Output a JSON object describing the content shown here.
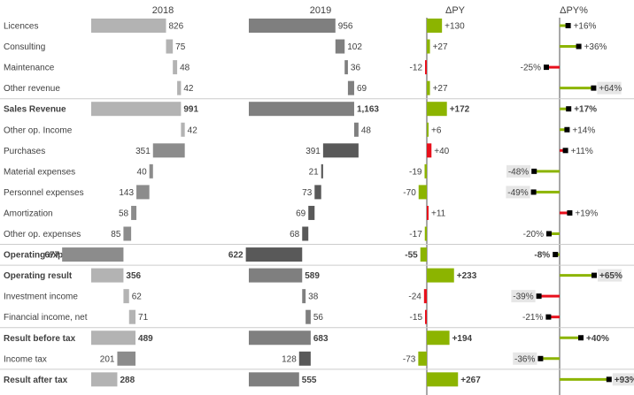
{
  "chart_data": {
    "type": "bar",
    "title": "",
    "columns": {
      "py": "2018",
      "ac": "2019",
      "delta": "ΔPY",
      "delta_pct": "ΔPY%"
    },
    "colors": {
      "py": "#b3b3b3",
      "py_cost": "#8c8c8c",
      "ac": "#7f7f7f",
      "ac_cost": "#595959",
      "positive": "#8cb400",
      "negative": "#e8101c",
      "axis": "#8c8c8c",
      "text": "#404040",
      "marker": "#000000"
    },
    "rows": [
      {
        "label": "Licences",
        "bold": false,
        "kind": "up",
        "py": 826,
        "py_label": "826",
        "ac": 956,
        "ac_label": "956",
        "delta": 130,
        "delta_label": "+130",
        "delta_good": true,
        "pct": 16,
        "pct_label": "+16%",
        "pct_good": true
      },
      {
        "label": "Consulting",
        "bold": false,
        "kind": "up",
        "py": 75,
        "py_label": "75",
        "ac": 102,
        "ac_label": "102",
        "delta": 27,
        "delta_label": "+27",
        "delta_good": true,
        "pct": 36,
        "pct_label": "+36%",
        "pct_good": true
      },
      {
        "label": "Maintenance",
        "bold": false,
        "kind": "up",
        "py": 48,
        "py_label": "48",
        "ac": 36,
        "ac_label": "36",
        "delta": -12,
        "delta_label": "-12",
        "delta_good": false,
        "pct": -25,
        "pct_label": "-25%",
        "pct_good": false
      },
      {
        "label": "Other revenue",
        "bold": false,
        "kind": "up",
        "py": 42,
        "py_label": "42",
        "ac": 69,
        "ac_label": "69",
        "delta": 27,
        "delta_label": "+27",
        "delta_good": true,
        "pct": 64,
        "pct_label": "+64%",
        "pct_good": true,
        "pct_shaded": true
      },
      {
        "label": "Sales Revenue",
        "bold": true,
        "kind": "total",
        "py": 991,
        "py_label": "991",
        "ac": 1163,
        "ac_label": "1,163",
        "delta": 172,
        "delta_label": "+172",
        "delta_good": true,
        "pct": 17,
        "pct_label": "+17%",
        "pct_good": true,
        "separator": true
      },
      {
        "label": "Other op. Income",
        "bold": false,
        "kind": "up",
        "py": 42,
        "py_label": "42",
        "ac": 48,
        "ac_label": "48",
        "delta": 6,
        "delta_label": "+6",
        "delta_good": true,
        "pct": 14,
        "pct_label": "+14%",
        "pct_good": true
      },
      {
        "label": "Purchases",
        "bold": false,
        "kind": "down",
        "py": 351,
        "py_label": "351",
        "ac": 391,
        "ac_label": "391",
        "delta": 40,
        "delta_label": "+40",
        "delta_good": false,
        "pct": 11,
        "pct_label": "+11%",
        "pct_good": false
      },
      {
        "label": "Material expenses",
        "bold": false,
        "kind": "down",
        "py": 40,
        "py_label": "40",
        "ac": 21,
        "ac_label": "21",
        "delta": -19,
        "delta_label": "-19",
        "delta_good": true,
        "pct": -48,
        "pct_label": "-48%",
        "pct_good": true,
        "pct_shaded": true
      },
      {
        "label": "Personnel expenses",
        "bold": false,
        "kind": "down",
        "py": 143,
        "py_label": "143",
        "ac": 73,
        "ac_label": "73",
        "delta": -70,
        "delta_label": "-70",
        "delta_good": true,
        "pct": -49,
        "pct_label": "-49%",
        "pct_good": true,
        "pct_shaded": true
      },
      {
        "label": "Amortization",
        "bold": false,
        "kind": "down",
        "py": 58,
        "py_label": "58",
        "ac": 69,
        "ac_label": "69",
        "delta": 11,
        "delta_label": "+11",
        "delta_good": false,
        "pct": 19,
        "pct_label": "+19%",
        "pct_good": false
      },
      {
        "label": "Other op. expenses",
        "bold": false,
        "kind": "down",
        "py": 85,
        "py_label": "85",
        "ac": 68,
        "ac_label": "68",
        "delta": -17,
        "delta_label": "-17",
        "delta_good": true,
        "pct": -20,
        "pct_label": "-20%",
        "pct_good": true
      },
      {
        "label": "Operating expenses",
        "bold": true,
        "kind": "total-cost",
        "py": 677,
        "py_label": "677",
        "ac": 622,
        "ac_label": "622",
        "delta": -55,
        "delta_label": "-55",
        "delta_good": true,
        "pct": -8,
        "pct_label": "-8%",
        "pct_good": true,
        "separator": true
      },
      {
        "label": "Operating result",
        "bold": true,
        "kind": "total",
        "py": 356,
        "py_label": "356",
        "ac": 589,
        "ac_label": "589",
        "delta": 233,
        "delta_label": "+233",
        "delta_good": true,
        "pct": 65,
        "pct_label": "+65%",
        "pct_good": true,
        "pct_shaded": true,
        "separator": true
      },
      {
        "label": "Investment income",
        "bold": false,
        "kind": "up",
        "py": 62,
        "py_label": "62",
        "ac": 38,
        "ac_label": "38",
        "delta": -24,
        "delta_label": "-24",
        "delta_good": false,
        "pct": -39,
        "pct_label": "-39%",
        "pct_good": false,
        "pct_shaded": true
      },
      {
        "label": "Financial income, net",
        "bold": false,
        "kind": "up",
        "py": 71,
        "py_label": "71",
        "ac": 56,
        "ac_label": "56",
        "delta": -15,
        "delta_label": "-15",
        "delta_good": false,
        "pct": -21,
        "pct_label": "-21%",
        "pct_good": false
      },
      {
        "label": "Result before tax",
        "bold": true,
        "kind": "total",
        "py": 489,
        "py_label": "489",
        "ac": 683,
        "ac_label": "683",
        "delta": 194,
        "delta_label": "+194",
        "delta_good": true,
        "pct": 40,
        "pct_label": "+40%",
        "pct_good": true,
        "separator": true
      },
      {
        "label": "Income tax",
        "bold": false,
        "kind": "down",
        "py": 201,
        "py_label": "201",
        "ac": 128,
        "ac_label": "128",
        "delta": -73,
        "delta_label": "-73",
        "delta_good": true,
        "pct": -36,
        "pct_label": "-36%",
        "pct_good": true,
        "pct_shaded": true
      },
      {
        "label": "Result after tax",
        "bold": true,
        "kind": "total",
        "py": 288,
        "py_label": "288",
        "ac": 555,
        "ac_label": "555",
        "delta": 267,
        "delta_label": "+267",
        "delta_good": true,
        "pct": 93,
        "pct_label": "+93%",
        "pct_good": true,
        "pct_shaded": true,
        "separator": true
      }
    ]
  }
}
